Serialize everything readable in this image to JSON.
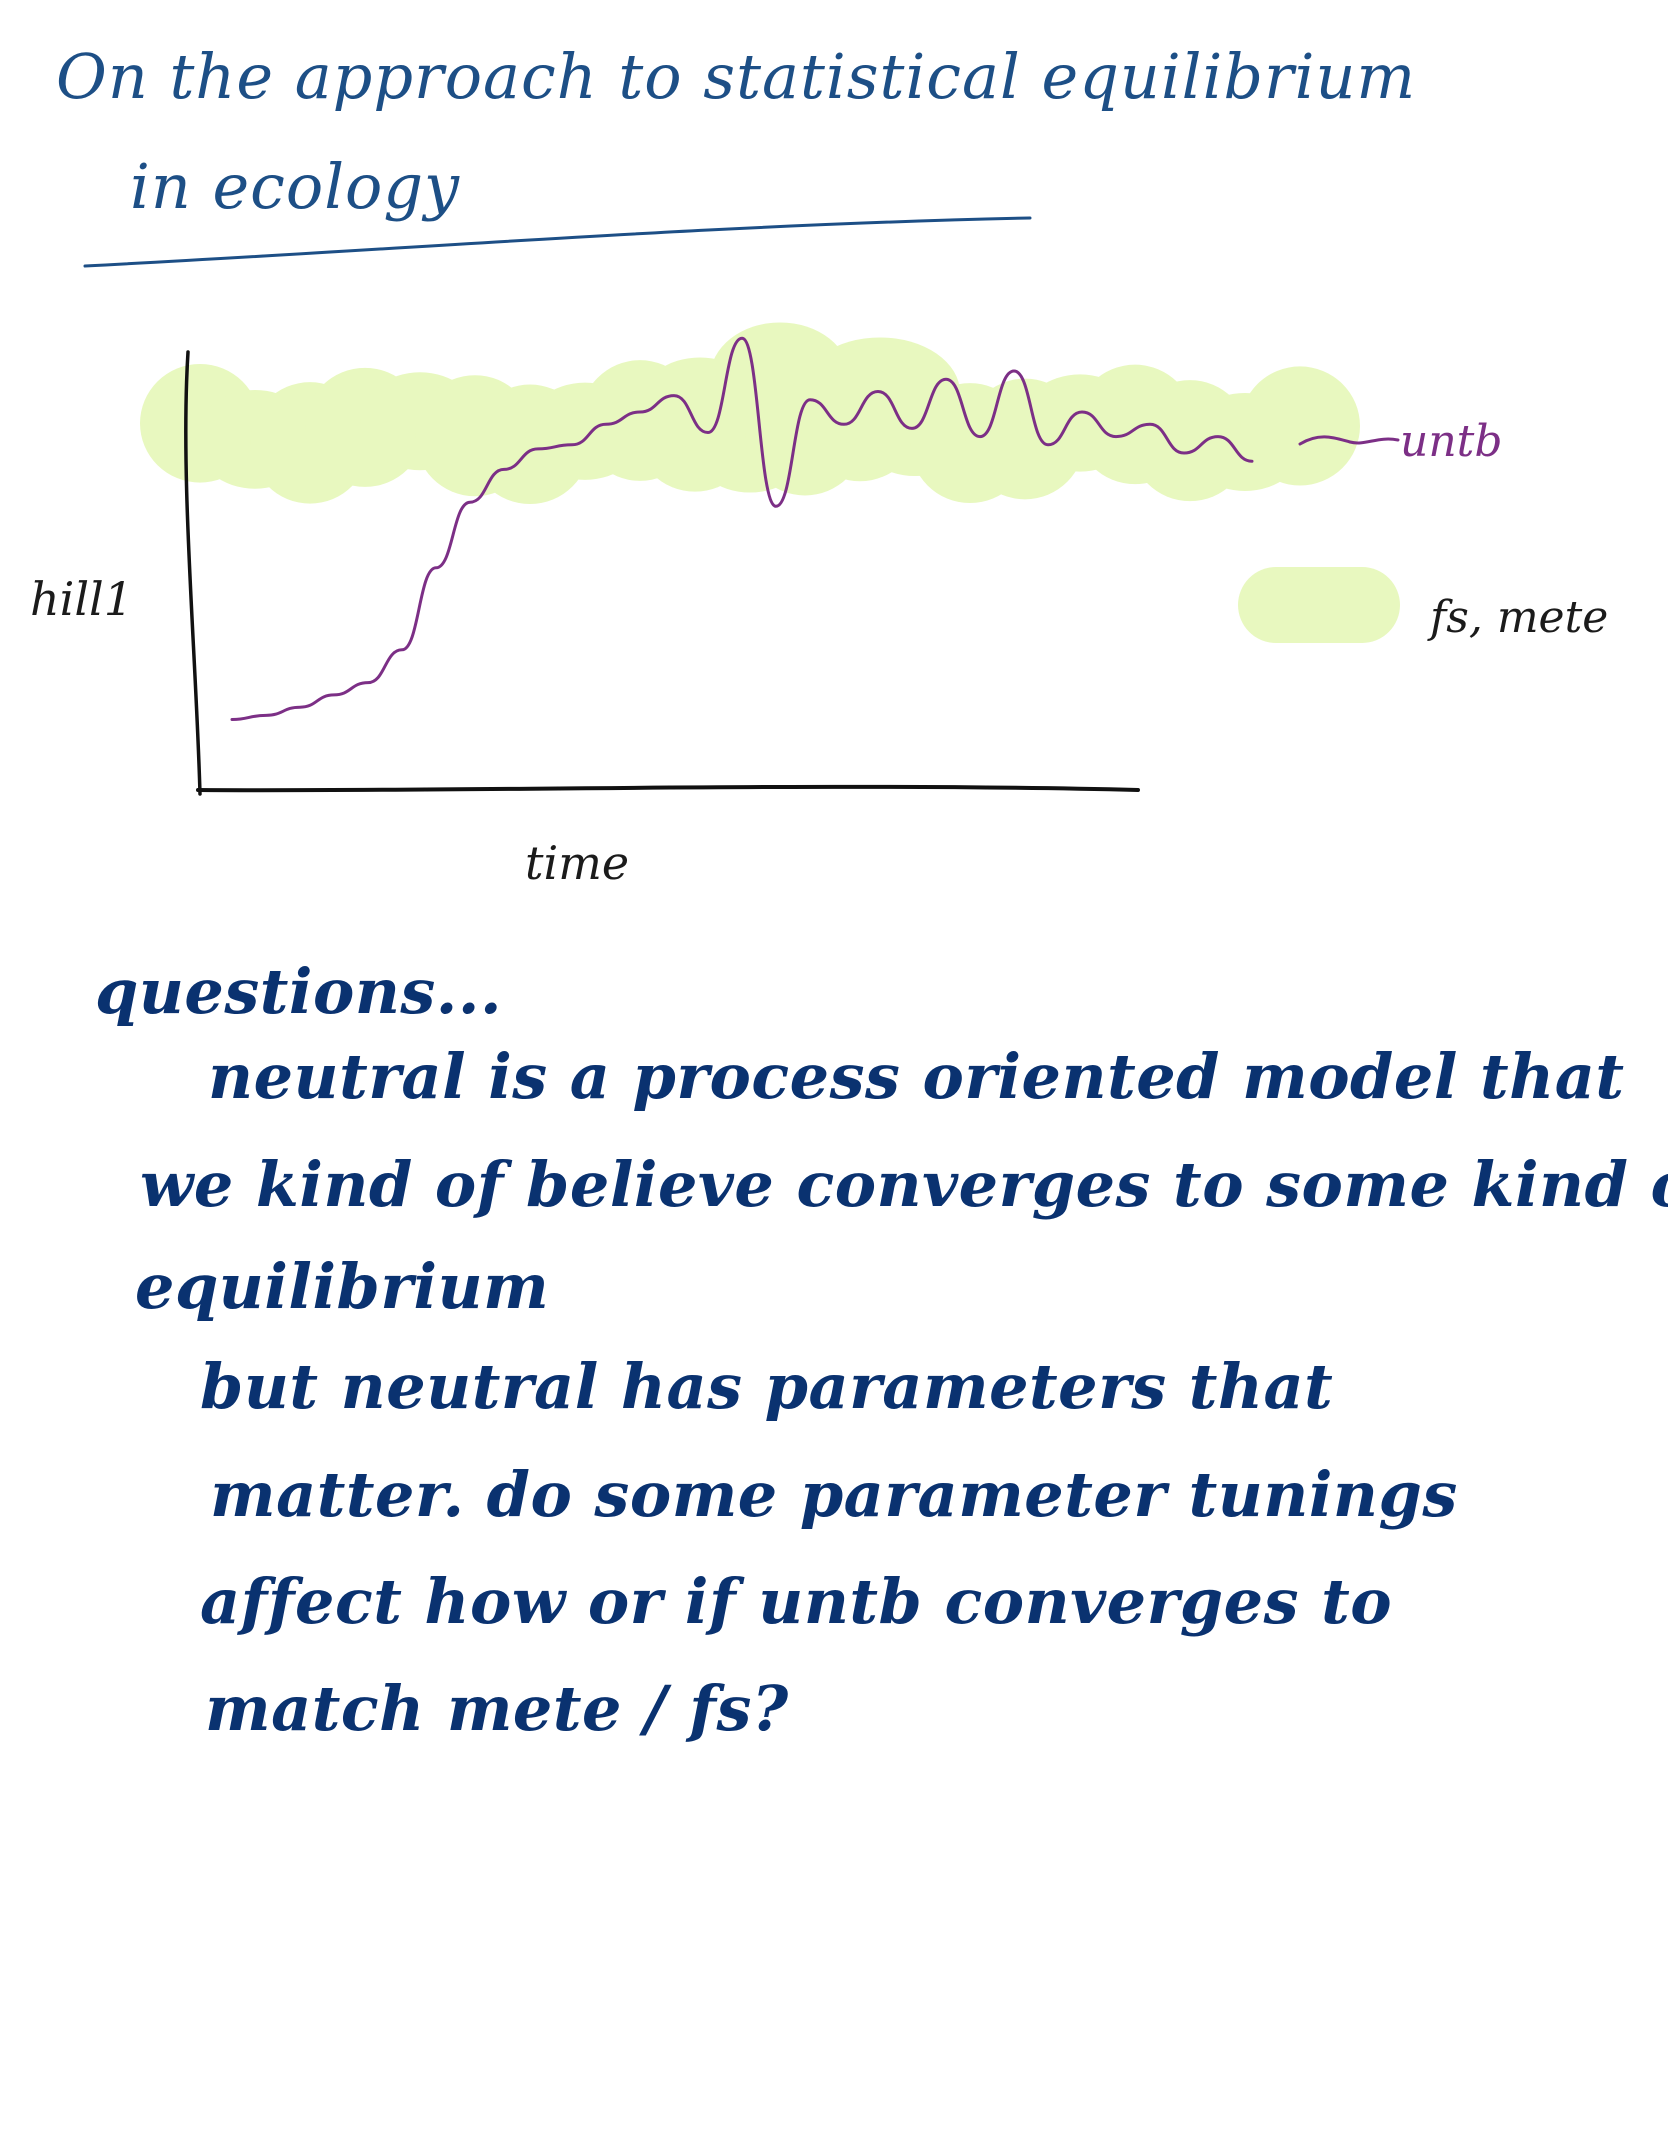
{
  "title": {
    "line1": "On the approach to statistical equilibrium",
    "line2": "in ecology"
  },
  "colors": {
    "title_ink": "#1d4f86",
    "series_untb": "#7c2f86",
    "band_fs_mete": "#e8f8bf",
    "axis_ink": "#1b1b1b",
    "notes_ink": "#0a3270"
  },
  "chart_data": {
    "type": "line",
    "title": "",
    "xlabel": "time",
    "ylabel": "hill1",
    "grid": false,
    "legend_placement": "right",
    "series": [
      {
        "name": "untb",
        "style": "line",
        "x": [
          0,
          1,
          2,
          3,
          4,
          5,
          6,
          7,
          8,
          9,
          10,
          11,
          12,
          13,
          14,
          15,
          16,
          17,
          18,
          19,
          20,
          21,
          22,
          23,
          24,
          25,
          26,
          27,
          28,
          29,
          30
        ],
        "values": [
          0.05,
          0.06,
          0.08,
          0.11,
          0.14,
          0.22,
          0.42,
          0.58,
          0.66,
          0.71,
          0.72,
          0.77,
          0.8,
          0.84,
          0.75,
          0.98,
          0.57,
          0.83,
          0.77,
          0.85,
          0.76,
          0.88,
          0.74,
          0.9,
          0.72,
          0.8,
          0.74,
          0.77,
          0.7,
          0.74,
          0.68
        ]
      },
      {
        "name": "fs, mete",
        "style": "band",
        "x": [
          0,
          30
        ],
        "values": [
          0.75,
          0.75
        ]
      }
    ]
  },
  "notes": {
    "heading": "questions...",
    "lines": [
      "neutral is a process oriented model that",
      "we kind of believe converges to some kind of",
      "equilibrium",
      "but neutral has parameters that",
      "matter. do some parameter tunings",
      "affect how or if untb converges to",
      "match mete / fs?"
    ]
  }
}
